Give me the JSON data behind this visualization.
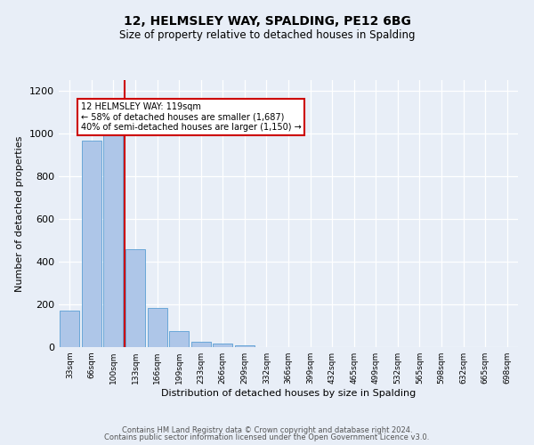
{
  "title": "12, HELMSLEY WAY, SPALDING, PE12 6BG",
  "subtitle": "Size of property relative to detached houses in Spalding",
  "xlabel": "Distribution of detached houses by size in Spalding",
  "ylabel": "Number of detached properties",
  "bar_labels": [
    "33sqm",
    "66sqm",
    "100sqm",
    "133sqm",
    "166sqm",
    "199sqm",
    "233sqm",
    "266sqm",
    "299sqm",
    "332sqm",
    "366sqm",
    "399sqm",
    "432sqm",
    "465sqm",
    "499sqm",
    "532sqm",
    "565sqm",
    "598sqm",
    "632sqm",
    "665sqm",
    "698sqm"
  ],
  "bar_values": [
    170,
    965,
    1000,
    460,
    185,
    75,
    25,
    15,
    10,
    0,
    0,
    0,
    0,
    0,
    0,
    0,
    0,
    0,
    0,
    0,
    0
  ],
  "bar_color": "#aec6e8",
  "bar_edge_color": "#5a9fd4",
  "property_line_x": 2.5,
  "property_line_color": "#cc0000",
  "annotation_text": "12 HELMSLEY WAY: 119sqm\n← 58% of detached houses are smaller (1,687)\n40% of semi-detached houses are larger (1,150) →",
  "annotation_box_color": "#ffffff",
  "annotation_box_edge": "#cc0000",
  "ylim": [
    0,
    1250
  ],
  "yticks": [
    0,
    200,
    400,
    600,
    800,
    1000,
    1200
  ],
  "footer1": "Contains HM Land Registry data © Crown copyright and database right 2024.",
  "footer2": "Contains public sector information licensed under the Open Government Licence v3.0.",
  "background_color": "#e8eef7",
  "plot_background": "#e8eef7"
}
